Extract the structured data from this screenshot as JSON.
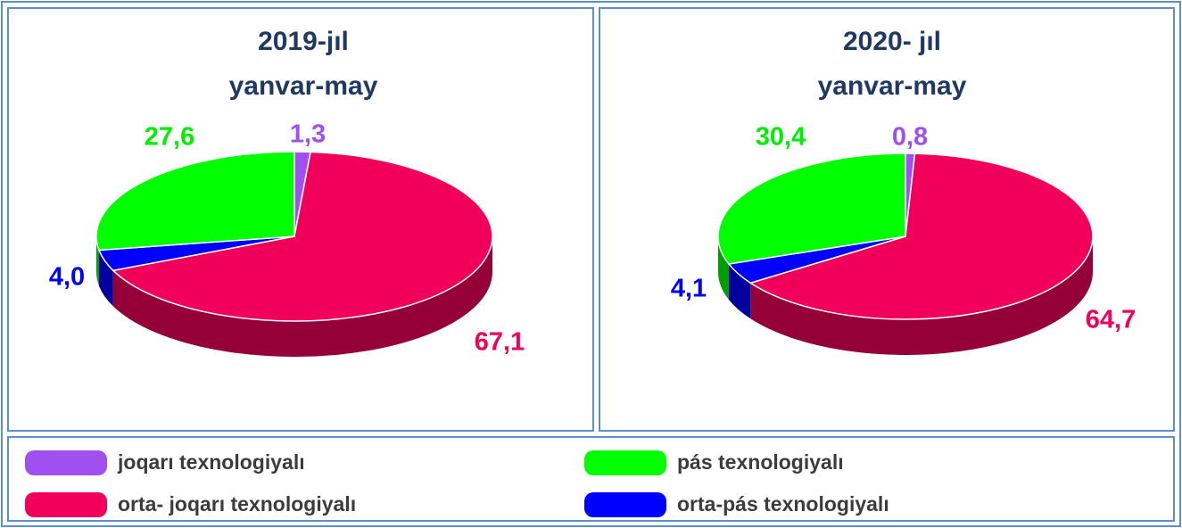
{
  "chart_data": [
    {
      "type": "pie3d",
      "title": "2019-jıl",
      "subtitle": "yanvar-may",
      "categories": [
        "joqarı texnologiyalı",
        "orta- joqarı texnologiyalı",
        "orta-pás texnologiyalı",
        "pás texnologiyalı"
      ],
      "values": [
        1.3,
        67.1,
        4.0,
        27.6
      ],
      "value_labels": [
        "1,3",
        "67,1",
        "4,0",
        "27,6"
      ],
      "colors": [
        "#a050f0",
        "#f0005a",
        "#0000ff",
        "#00ff00"
      ]
    },
    {
      "type": "pie3d",
      "title": "2020- jıl",
      "subtitle": "yanvar-may",
      "categories": [
        "joqarı texnologiyalı",
        "orta- joqarı texnologiyalı",
        "orta-pás texnologiyalı",
        "pás texnologiyalı"
      ],
      "values": [
        0.8,
        64.7,
        4.1,
        30.4
      ],
      "value_labels": [
        "0,8",
        "64,7",
        "4,1",
        "30,4"
      ],
      "colors": [
        "#a050f0",
        "#f0005a",
        "#0000ff",
        "#00ff00"
      ]
    }
  ]
}
